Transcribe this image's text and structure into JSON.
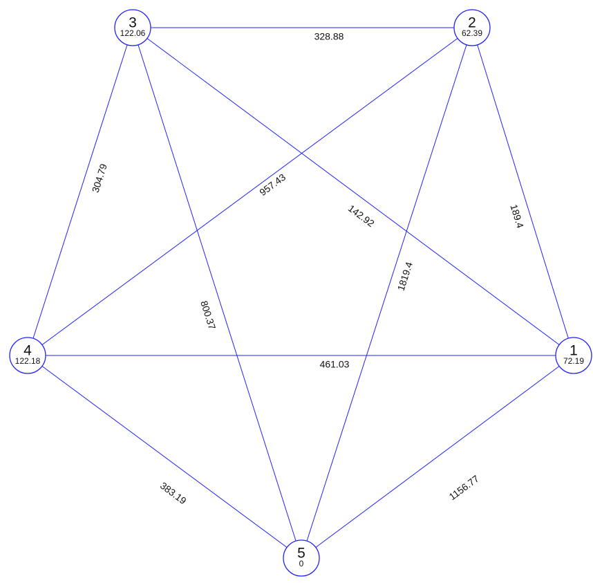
{
  "nodes": [
    {
      "label": "1",
      "value": "72.19"
    },
    {
      "label": "2",
      "value": "62.39"
    },
    {
      "label": "3",
      "value": "122.06"
    },
    {
      "label": "4",
      "value": "122.18"
    },
    {
      "label": "5",
      "value": "0"
    }
  ],
  "edges": [
    {
      "label": "328.88"
    },
    {
      "label": "304.79"
    },
    {
      "label": "957.43"
    },
    {
      "label": "142.92"
    },
    {
      "label": "189.4"
    },
    {
      "label": "800.37"
    },
    {
      "label": "1819.4"
    },
    {
      "label": "461.03"
    },
    {
      "label": "383.19"
    },
    {
      "label": "1156.77"
    }
  ]
}
